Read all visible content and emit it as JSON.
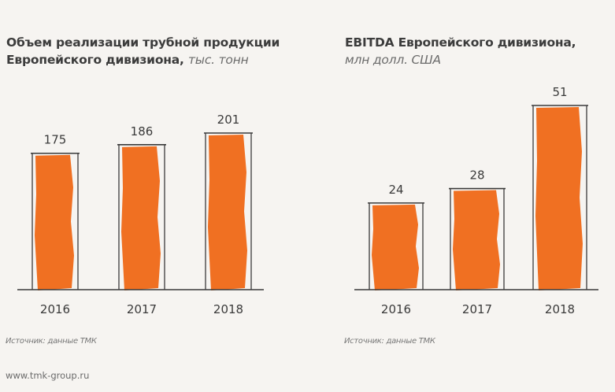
{
  "chart_data": [
    {
      "type": "bar",
      "title": "Объем реализации трубной продукции Европейского дивизиона,",
      "title_lines": [
        "Объем реализации трубной продукции",
        "Европейского дивизиона,"
      ],
      "unit": "тыс. тонн",
      "categories": [
        "2016",
        "2017",
        "2018"
      ],
      "values": [
        175,
        186,
        201
      ],
      "data_labels": [
        "175",
        "186",
        "201"
      ],
      "xlabel": "",
      "ylabel": "",
      "ylim": [
        0,
        210
      ],
      "grid": false,
      "source": "Источник: данные ТМК",
      "bar_color": "#f07022"
    },
    {
      "type": "bar",
      "title": "EBITDA Европейского дивизиона,",
      "title_lines": [
        "EBITDA Европейского дивизиона,"
      ],
      "unit": "млн долл. США",
      "categories": [
        "2016",
        "2017",
        "2018"
      ],
      "values": [
        24,
        28,
        51
      ],
      "data_labels": [
        "24",
        "28",
        "51"
      ],
      "xlabel": "",
      "ylabel": "",
      "ylim": [
        0,
        54
      ],
      "grid": false,
      "source": "Источник: данные ТМК",
      "bar_color": "#f07022"
    }
  ],
  "footer": {
    "url": "www.tmk-group.ru"
  },
  "colors": {
    "background": "#f6f4f1",
    "bar": "#f07022",
    "outline": "#3a3a3a"
  }
}
